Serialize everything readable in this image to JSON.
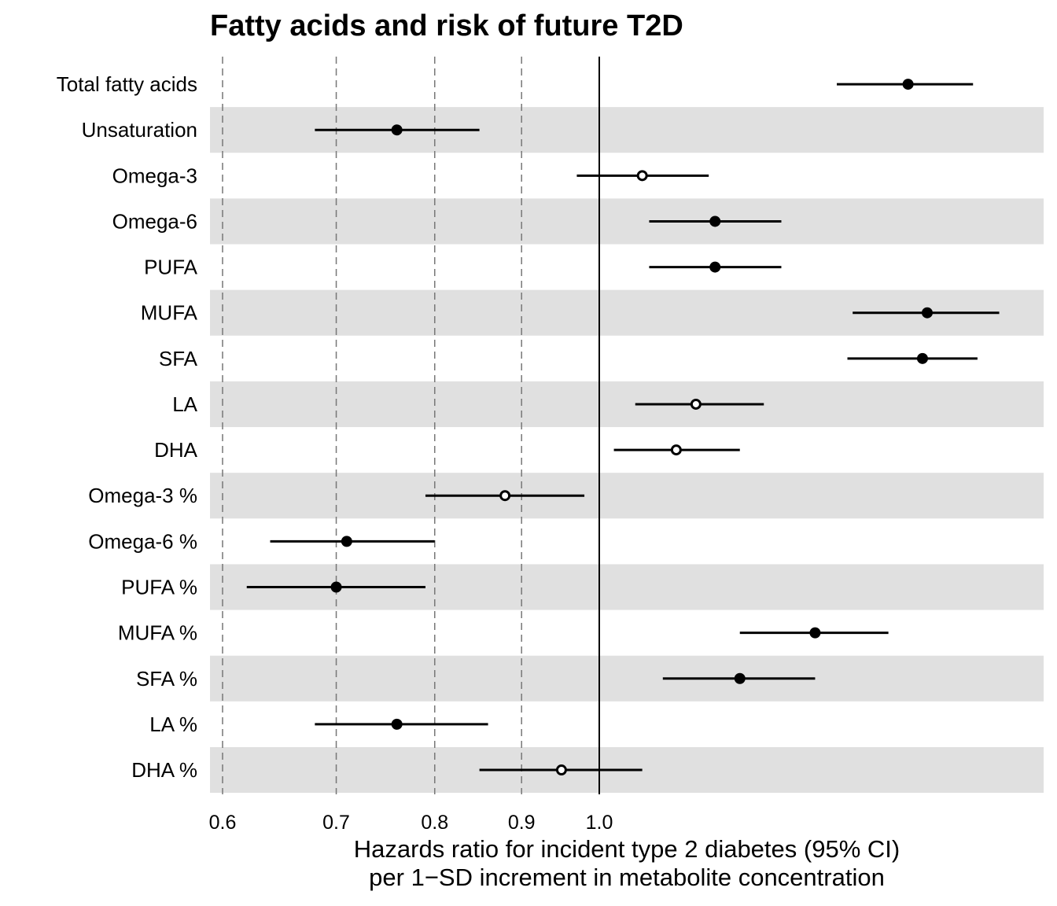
{
  "chart_data": {
    "type": "forest",
    "title": "Fatty acids and risk of future T2D",
    "xlabel": [
      "Hazards ratio for incident type 2 diabetes (95% CI)",
      "per 1−SD increment in metabolite concentration"
    ],
    "x_scale": "log",
    "xlim": [
      0.59,
      1.8
    ],
    "x_ticks": [
      0.6,
      0.7,
      0.8,
      0.9,
      1.0
    ],
    "x_tick_labels": [
      "0.6",
      "0.7",
      "0.8",
      "0.9",
      "1.0"
    ],
    "dashed_reference_lines": [
      0.6,
      0.7,
      0.8,
      0.9
    ],
    "solid_reference_line": 1.0,
    "band_color": "#e0e0e0",
    "rows": [
      {
        "label": "Total fatty acids",
        "estimate": 1.52,
        "lower": 1.38,
        "upper": 1.66,
        "filled": true
      },
      {
        "label": "Unsaturation",
        "estimate": 0.76,
        "lower": 0.68,
        "upper": 0.85,
        "filled": true
      },
      {
        "label": "Omega-3",
        "estimate": 1.06,
        "lower": 0.97,
        "upper": 1.16,
        "filled": false
      },
      {
        "label": "Omega-6",
        "estimate": 1.17,
        "lower": 1.07,
        "upper": 1.28,
        "filled": true
      },
      {
        "label": "PUFA",
        "estimate": 1.17,
        "lower": 1.07,
        "upper": 1.28,
        "filled": true
      },
      {
        "label": "MUFA",
        "estimate": 1.56,
        "lower": 1.41,
        "upper": 1.72,
        "filled": true
      },
      {
        "label": "SFA",
        "estimate": 1.55,
        "lower": 1.4,
        "upper": 1.67,
        "filled": true
      },
      {
        "label": "LA",
        "estimate": 1.14,
        "lower": 1.05,
        "upper": 1.25,
        "filled": false
      },
      {
        "label": "DHA",
        "estimate": 1.11,
        "lower": 1.02,
        "upper": 1.21,
        "filled": false
      },
      {
        "label": "Omega-3 %",
        "estimate": 0.88,
        "lower": 0.79,
        "upper": 0.98,
        "filled": false
      },
      {
        "label": "Omega-6 %",
        "estimate": 0.71,
        "lower": 0.64,
        "upper": 0.8,
        "filled": true
      },
      {
        "label": "PUFA %",
        "estimate": 0.7,
        "lower": 0.62,
        "upper": 0.79,
        "filled": true
      },
      {
        "label": "MUFA %",
        "estimate": 1.34,
        "lower": 1.21,
        "upper": 1.48,
        "filled": true
      },
      {
        "label": "SFA %",
        "estimate": 1.21,
        "lower": 1.09,
        "upper": 1.34,
        "filled": true
      },
      {
        "label": "LA %",
        "estimate": 0.76,
        "lower": 0.68,
        "upper": 0.86,
        "filled": true
      },
      {
        "label": "DHA %",
        "estimate": 0.95,
        "lower": 0.85,
        "upper": 1.06,
        "filled": false
      }
    ]
  }
}
